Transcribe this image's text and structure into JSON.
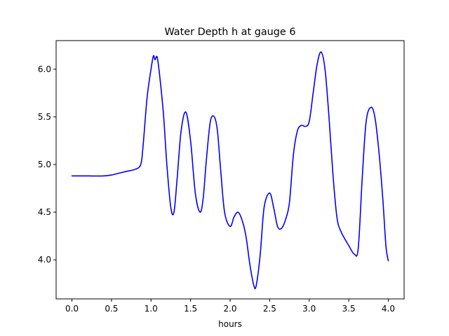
{
  "chart_data": {
    "type": "line",
    "title": "Water Depth h at gauge 6",
    "xlabel": "hours",
    "ylabel": "",
    "xlim": [
      -0.2,
      4.2
    ],
    "ylim": [
      3.59,
      6.3
    ],
    "xticks": [
      0.0,
      0.5,
      1.0,
      1.5,
      2.0,
      2.5,
      3.0,
      3.5,
      4.0
    ],
    "xtick_labels": [
      "0.0",
      "0.5",
      "1.0",
      "1.5",
      "2.0",
      "2.5",
      "3.0",
      "3.5",
      "4.0"
    ],
    "yticks": [
      4.0,
      4.5,
      5.0,
      5.5,
      6.0
    ],
    "ytick_labels": [
      "4.0",
      "4.5",
      "5.0",
      "5.5",
      "6.0"
    ],
    "grid": false,
    "legend": "none",
    "series": [
      {
        "color": "#0000ff",
        "x": [
          0.0,
          0.2,
          0.4,
          0.5,
          0.6,
          0.7,
          0.8,
          0.87,
          0.9,
          0.95,
          1.0,
          1.03,
          1.05,
          1.08,
          1.12,
          1.16,
          1.2,
          1.25,
          1.29,
          1.33,
          1.38,
          1.44,
          1.5,
          1.56,
          1.62,
          1.66,
          1.7,
          1.75,
          1.8,
          1.84,
          1.88,
          1.93,
          2.0,
          2.05,
          2.1,
          2.15,
          2.2,
          2.25,
          2.3,
          2.33,
          2.38,
          2.43,
          2.5,
          2.55,
          2.6,
          2.65,
          2.7,
          2.75,
          2.8,
          2.85,
          2.9,
          2.95,
          3.0,
          3.05,
          3.1,
          3.15,
          3.2,
          3.25,
          3.3,
          3.35,
          3.4,
          3.5,
          3.57,
          3.62,
          3.67,
          3.72,
          3.78,
          3.83,
          3.88,
          3.93,
          3.97,
          4.0
        ],
        "y": [
          4.88,
          4.88,
          4.88,
          4.89,
          4.91,
          4.93,
          4.95,
          5.0,
          5.2,
          5.7,
          6.0,
          6.14,
          6.1,
          6.12,
          5.85,
          5.5,
          5.0,
          4.55,
          4.5,
          4.85,
          5.35,
          5.55,
          5.25,
          4.7,
          4.5,
          4.65,
          5.05,
          5.45,
          5.5,
          5.35,
          4.95,
          4.5,
          4.35,
          4.45,
          4.5,
          4.42,
          4.25,
          3.95,
          3.73,
          3.73,
          4.05,
          4.55,
          4.7,
          4.55,
          4.35,
          4.33,
          4.42,
          4.6,
          5.1,
          5.35,
          5.41,
          5.4,
          5.45,
          5.75,
          6.05,
          6.18,
          6.0,
          5.5,
          4.9,
          4.45,
          4.3,
          4.15,
          4.06,
          4.12,
          4.85,
          5.45,
          5.6,
          5.5,
          5.15,
          4.65,
          4.15,
          3.99
        ]
      }
    ]
  }
}
